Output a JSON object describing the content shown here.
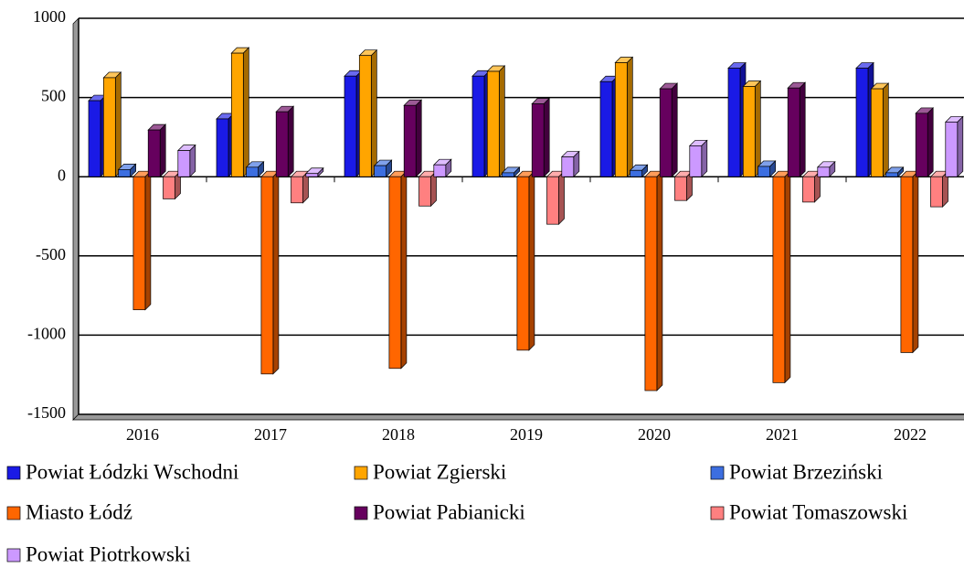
{
  "chart_data": {
    "type": "bar3d",
    "categories": [
      "2016",
      "2017",
      "2018",
      "2019",
      "2020",
      "2021",
      "2022"
    ],
    "series": [
      {
        "name": "Powiat Łódzki Wschodni",
        "color": "#1a1ae6",
        "values": [
          480,
          365,
          635,
          635,
          600,
          685,
          685
        ]
      },
      {
        "name": "Powiat Zgierski",
        "color": "#ffa500",
        "values": [
          625,
          780,
          765,
          665,
          720,
          570,
          555
        ]
      },
      {
        "name": "Powiat Brzeziński",
        "color": "#3c6ee0",
        "values": [
          45,
          60,
          70,
          25,
          40,
          65,
          25
        ]
      },
      {
        "name": "Miasto Łódź",
        "color": "#ff6600",
        "values": [
          -840,
          -1245,
          -1210,
          -1095,
          -1350,
          -1300,
          -1110
        ]
      },
      {
        "name": "Powiat Pabianicki",
        "color": "#66005e",
        "values": [
          295,
          410,
          450,
          460,
          555,
          560,
          400
        ]
      },
      {
        "name": "Powiat Tomaszowski",
        "color": "#ff8080",
        "values": [
          -140,
          -165,
          -185,
          -300,
          -150,
          -160,
          -190
        ]
      },
      {
        "name": "Powiat Piotrkowski",
        "color": "#cc99ff",
        "values": [
          165,
          20,
          75,
          125,
          195,
          60,
          345
        ]
      }
    ],
    "ylim": [
      -1500,
      1000
    ],
    "yticks": [
      -1500,
      -1000,
      -500,
      0,
      500,
      1000
    ],
    "grid": true
  }
}
